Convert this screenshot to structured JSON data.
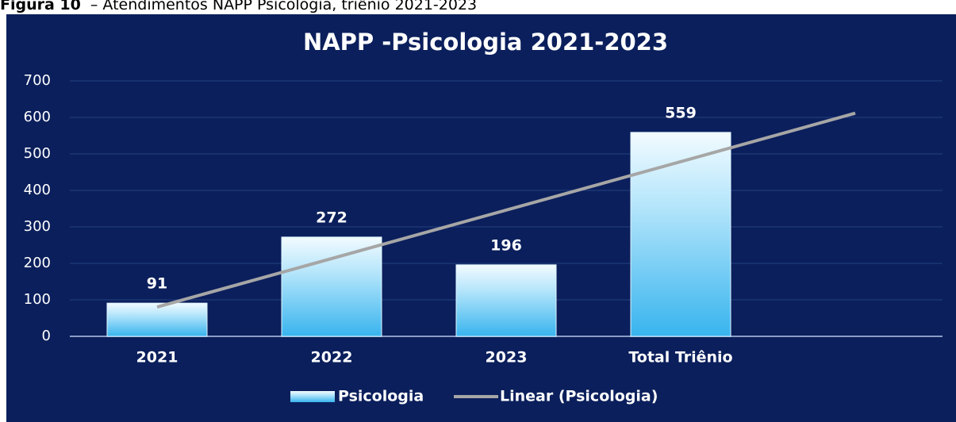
{
  "caption": {
    "label": "Figura 10",
    "text": "– Atendimentos NAPP Psicologia, triênio 2021-2023"
  },
  "chart_data": {
    "type": "bar",
    "title": "NAPP -Psicologia  2021-2023",
    "categories": [
      "2021",
      "2022",
      "2023",
      "Total Triênio",
      null
    ],
    "series": [
      {
        "name": "Psicologia",
        "color": "#5ec8f5",
        "values": [
          91,
          272,
          196,
          559,
          null
        ]
      }
    ],
    "trendline": {
      "name": "Linear (Psicologia)",
      "type": "linear",
      "color": "#a6a6a6",
      "forward": 1
    },
    "ylim": [
      0,
      700
    ],
    "yticks": [
      0,
      100,
      200,
      300,
      400,
      500,
      600,
      700
    ],
    "grid": true,
    "legend": "bottom"
  }
}
